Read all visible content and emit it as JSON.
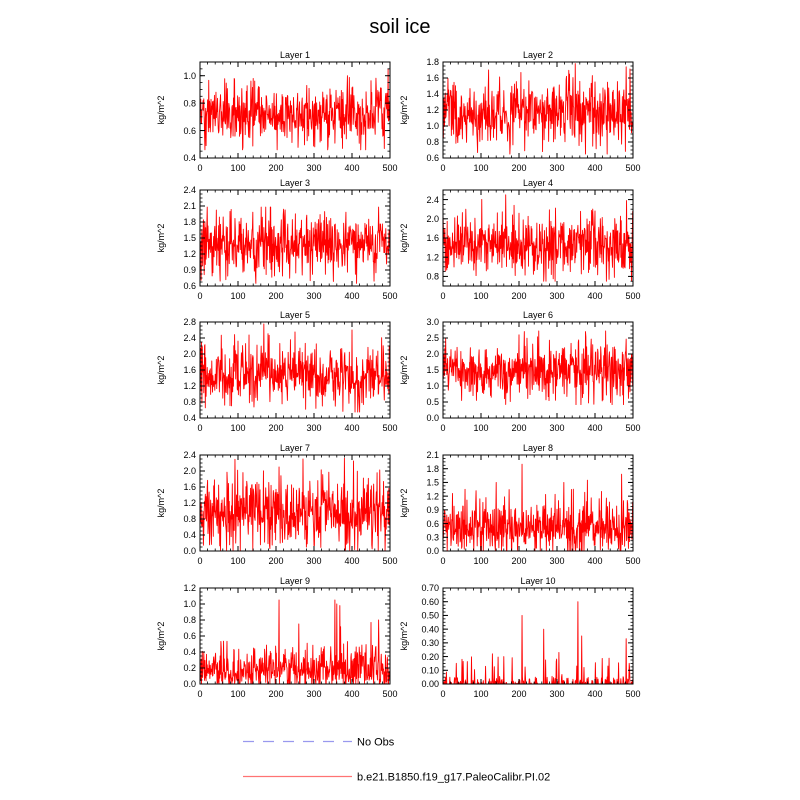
{
  "title": "soil ice",
  "colors": {
    "model": "#ff0000",
    "obs": "#9999ee",
    "axis": "#000000"
  },
  "legend": {
    "obs_label": "No Obs",
    "model_label": "b.e21.B1850.f19_g17.PaleoCalibr.PI.02"
  },
  "chart_data": [
    {
      "type": "line",
      "title": "Layer 1",
      "xlabel": "",
      "ylabel": "kg/m^2",
      "xlim": [
        0,
        500
      ],
      "ylim": [
        0.4,
        1.1
      ],
      "xticks": [
        0,
        100,
        200,
        300,
        400,
        500
      ],
      "xtick_labels": [
        "0",
        "100",
        "200",
        "300",
        "400",
        "500"
      ],
      "yticks": [
        0.4,
        0.6,
        0.8,
        1.0
      ],
      "ytick_labels": [
        "0.4",
        "0.6",
        "0.8",
        "1.0"
      ],
      "series": [
        {
          "name": "b.e21.B1850.f19_g17.PaleoCalibr.PI.02",
          "n": 500,
          "mean": 0.71,
          "sd": 0.1,
          "min": 0.46,
          "max": 1.05,
          "peaks": [
            [
              388,
              1.0
            ],
            [
              495,
              1.05
            ],
            [
              90,
              0.98
            ],
            [
              140,
              0.98
            ],
            [
              423,
              0.46
            ],
            [
              375,
              0.47
            ]
          ]
        }
      ]
    },
    {
      "type": "line",
      "title": "Layer 2",
      "xlabel": "",
      "ylabel": "kg/m^2",
      "xlim": [
        0,
        500
      ],
      "ylim": [
        0.6,
        1.8
      ],
      "xticks": [
        0,
        100,
        200,
        300,
        400,
        500
      ],
      "xtick_labels": [
        "0",
        "100",
        "200",
        "300",
        "400",
        "500"
      ],
      "yticks": [
        0.6,
        0.8,
        1.0,
        1.2,
        1.4,
        1.6,
        1.8
      ],
      "ytick_labels": [
        "0.6",
        "0.8",
        "1.0",
        "1.2",
        "1.4",
        "1.6",
        "1.8"
      ],
      "series": [
        {
          "name": "b.e21.B1850.f19_g17.PaleoCalibr.PI.02",
          "n": 500,
          "mean": 1.17,
          "sd": 0.19,
          "min": 0.65,
          "max": 1.78,
          "peaks": [
            [
              348,
              1.78
            ],
            [
              482,
              1.74
            ],
            [
              120,
              1.7
            ],
            [
              432,
              0.65
            ],
            [
              262,
              0.68
            ]
          ]
        }
      ]
    },
    {
      "type": "line",
      "title": "Layer 3",
      "xlabel": "",
      "ylabel": "kg/m^2",
      "xlim": [
        0,
        500
      ],
      "ylim": [
        0.6,
        2.4
      ],
      "xticks": [
        0,
        100,
        200,
        300,
        400,
        500
      ],
      "xtick_labels": [
        "0",
        "100",
        "200",
        "300",
        "400",
        "500"
      ],
      "yticks": [
        0.6,
        0.9,
        1.2,
        1.5,
        1.8,
        2.1,
        2.4
      ],
      "ytick_labels": [
        "0.6",
        "0.9",
        "1.2",
        "1.5",
        "1.8",
        "2.1",
        "2.4"
      ],
      "series": [
        {
          "name": "b.e21.B1850.f19_g17.PaleoCalibr.PI.02",
          "n": 500,
          "mean": 1.37,
          "sd": 0.26,
          "min": 0.65,
          "max": 2.08,
          "peaks": [
            [
              173,
              2.08
            ],
            [
              470,
              2.08
            ],
            [
              220,
              2.04
            ],
            [
              412,
              0.65
            ],
            [
              290,
              0.7
            ]
          ]
        }
      ]
    },
    {
      "type": "line",
      "title": "Layer 4",
      "xlabel": "",
      "ylabel": "kg/m^2",
      "xlim": [
        0,
        500
      ],
      "ylim": [
        0.6,
        2.6
      ],
      "xticks": [
        0,
        100,
        200,
        300,
        400,
        500
      ],
      "xtick_labels": [
        "0",
        "100",
        "200",
        "300",
        "400",
        "500"
      ],
      "yticks": [
        0.8,
        1.2,
        1.6,
        2.0,
        2.4
      ],
      "ytick_labels": [
        "0.8",
        "1.2",
        "1.6",
        "2.0",
        "2.4"
      ],
      "series": [
        {
          "name": "b.e21.B1850.f19_g17.PaleoCalibr.PI.02",
          "n": 500,
          "mean": 1.45,
          "sd": 0.3,
          "min": 0.7,
          "max": 2.5,
          "peaks": [
            [
              165,
              2.5
            ],
            [
              483,
              2.38
            ],
            [
              60,
              2.2
            ],
            [
              430,
              0.7
            ],
            [
              290,
              0.75
            ]
          ]
        }
      ]
    },
    {
      "type": "line",
      "title": "Layer 5",
      "xlabel": "",
      "ylabel": "kg/m^2",
      "xlim": [
        0,
        500
      ],
      "ylim": [
        0.4,
        2.8
      ],
      "xticks": [
        0,
        100,
        200,
        300,
        400,
        500
      ],
      "xtick_labels": [
        "0",
        "100",
        "200",
        "300",
        "400",
        "500"
      ],
      "yticks": [
        0.4,
        0.8,
        1.2,
        1.6,
        2.0,
        2.4,
        2.8
      ],
      "ytick_labels": [
        "0.4",
        "0.8",
        "1.2",
        "1.6",
        "2.0",
        "2.4",
        "2.8"
      ],
      "series": [
        {
          "name": "b.e21.B1850.f19_g17.PaleoCalibr.PI.02",
          "n": 500,
          "mean": 1.5,
          "sd": 0.35,
          "min": 0.55,
          "max": 2.75,
          "peaks": [
            [
              168,
              2.75
            ],
            [
              400,
              2.6
            ],
            [
              250,
              2.55
            ],
            [
              420,
              0.55
            ],
            [
              278,
              0.62
            ]
          ]
        }
      ]
    },
    {
      "type": "line",
      "title": "Layer 6",
      "xlabel": "",
      "ylabel": "kg/m^2",
      "xlim": [
        0,
        500
      ],
      "ylim": [
        0.0,
        3.0
      ],
      "xticks": [
        0,
        100,
        200,
        300,
        400,
        500
      ],
      "xtick_labels": [
        "0",
        "100",
        "200",
        "300",
        "400",
        "500"
      ],
      "yticks": [
        0.0,
        0.5,
        1.0,
        1.5,
        2.0,
        2.5,
        3.0
      ],
      "ytick_labels": [
        "0.0",
        "0.5",
        "1.0",
        "1.5",
        "2.0",
        "2.5",
        "3.0"
      ],
      "series": [
        {
          "name": "b.e21.B1850.f19_g17.PaleoCalibr.PI.02",
          "n": 500,
          "mean": 1.45,
          "sd": 0.38,
          "min": 0.42,
          "max": 2.72,
          "peaks": [
            [
              428,
              2.72
            ],
            [
              375,
              2.7
            ],
            [
              200,
              2.6
            ],
            [
              445,
              0.42
            ],
            [
              88,
              0.55
            ]
          ]
        }
      ]
    },
    {
      "type": "line",
      "title": "Layer 7",
      "xlabel": "",
      "ylabel": "kg/m^2",
      "xlim": [
        0,
        500
      ],
      "ylim": [
        0.0,
        2.4
      ],
      "xticks": [
        0,
        100,
        200,
        300,
        400,
        500
      ],
      "xtick_labels": [
        "0",
        "100",
        "200",
        "300",
        "400",
        "500"
      ],
      "yticks": [
        0.0,
        0.4,
        0.8,
        1.2,
        1.6,
        2.0,
        2.4
      ],
      "ytick_labels": [
        "0.0",
        "0.4",
        "0.8",
        "1.2",
        "1.6",
        "2.0",
        "2.4"
      ],
      "series": [
        {
          "name": "b.e21.B1850.f19_g17.PaleoCalibr.PI.02",
          "n": 500,
          "mean": 0.95,
          "sd": 0.38,
          "min": 0.02,
          "max": 2.32,
          "peaks": [
            [
              380,
              2.32
            ],
            [
              271,
              2.3
            ],
            [
              404,
              2.25
            ],
            [
              208,
              2.1
            ],
            [
              415,
              0.02
            ],
            [
              280,
              0.1
            ]
          ]
        }
      ]
    },
    {
      "type": "line",
      "title": "Layer 8",
      "xlabel": "",
      "ylabel": "kg/m^2",
      "xlim": [
        0,
        500
      ],
      "ylim": [
        0.0,
        2.1
      ],
      "xticks": [
        0,
        100,
        200,
        300,
        400,
        500
      ],
      "xtick_labels": [
        "0",
        "100",
        "200",
        "300",
        "400",
        "500"
      ],
      "yticks": [
        0.0,
        0.3,
        0.6,
        0.9,
        1.2,
        1.5,
        1.8,
        2.1
      ],
      "ytick_labels": [
        "0.0",
        "0.3",
        "0.6",
        "0.9",
        "1.2",
        "1.5",
        "1.8",
        "2.1"
      ],
      "series": [
        {
          "name": "b.e21.B1850.f19_g17.PaleoCalibr.PI.02",
          "n": 500,
          "mean": 0.52,
          "sd": 0.3,
          "min": 0.0,
          "max": 1.9,
          "peaks": [
            [
              208,
              1.9
            ],
            [
              470,
              1.68
            ],
            [
              380,
              1.55
            ],
            [
              318,
              1.5
            ],
            [
              140,
              1.5
            ]
          ]
        }
      ]
    },
    {
      "type": "line",
      "title": "Layer 9",
      "xlabel": "",
      "ylabel": "kg/m^2",
      "xlim": [
        0,
        500
      ],
      "ylim": [
        0.0,
        1.2
      ],
      "xticks": [
        0,
        100,
        200,
        300,
        400,
        500
      ],
      "xtick_labels": [
        "0",
        "100",
        "200",
        "300",
        "400",
        "500"
      ],
      "yticks": [
        0.0,
        0.2,
        0.4,
        0.6,
        0.8,
        1.0,
        1.2
      ],
      "ytick_labels": [
        "0.0",
        "0.2",
        "0.4",
        "0.6",
        "0.8",
        "1.0",
        "1.2"
      ],
      "series": [
        {
          "name": "b.e21.B1850.f19_g17.PaleoCalibr.PI.02",
          "n": 500,
          "mean": 0.18,
          "sd": 0.13,
          "min": 0.0,
          "max": 1.05,
          "peaks": [
            [
              208,
              1.05
            ],
            [
              355,
              1.05
            ],
            [
              360,
              1.0
            ],
            [
              368,
              0.98
            ],
            [
              470,
              0.8
            ],
            [
              450,
              0.77
            ],
            [
              260,
              0.75
            ]
          ]
        }
      ]
    },
    {
      "type": "line",
      "title": "Layer 10",
      "xlabel": "",
      "ylabel": "kg/m^2",
      "xlim": [
        0,
        500
      ],
      "ylim": [
        0.0,
        0.7
      ],
      "xticks": [
        0,
        100,
        200,
        300,
        400,
        500
      ],
      "xtick_labels": [
        "0",
        "100",
        "200",
        "300",
        "400",
        "500"
      ],
      "yticks": [
        0.0,
        0.1,
        0.2,
        0.3,
        0.4,
        0.5,
        0.6,
        0.7
      ],
      "ytick_labels": [
        "0.00",
        "0.10",
        "0.20",
        "0.30",
        "0.40",
        "0.50",
        "0.60",
        "0.70"
      ],
      "series": [
        {
          "name": "b.e21.B1850.f19_g17.PaleoCalibr.PI.02",
          "n": 500,
          "mean": 0.02,
          "sd": 0.04,
          "min": 0.0,
          "max": 0.6,
          "sparse": true,
          "peaks": [
            [
              355,
              0.6
            ],
            [
              208,
              0.5
            ],
            [
              265,
              0.4
            ],
            [
              365,
              0.35
            ],
            [
              482,
              0.33
            ],
            [
              130,
              0.22
            ],
            [
              160,
              0.2
            ],
            [
              305,
              0.23
            ],
            [
              50,
              0.18
            ]
          ]
        }
      ]
    }
  ]
}
